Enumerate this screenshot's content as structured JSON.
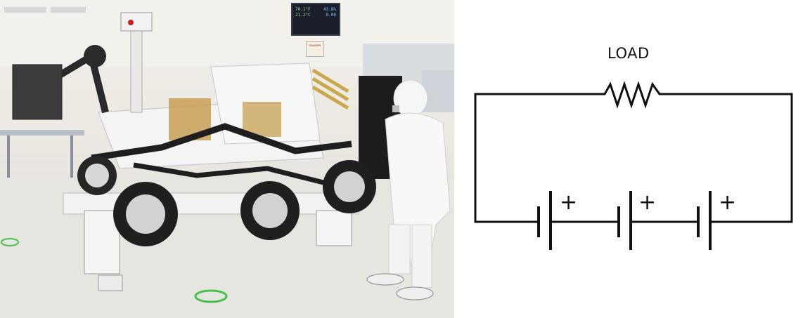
{
  "photo": {
    "description_alt": "",
    "monitor_rows": [
      [
        "70.1°F",
        "43.8%"
      ],
      [
        "21.2°C",
        "0.00"
      ],
      [
        "",
        ""
      ]
    ],
    "sign_text": "DANGER"
  },
  "circuit": {
    "load_label": "LOAD",
    "battery_plus_symbols": [
      "+",
      "+",
      "+"
    ]
  }
}
